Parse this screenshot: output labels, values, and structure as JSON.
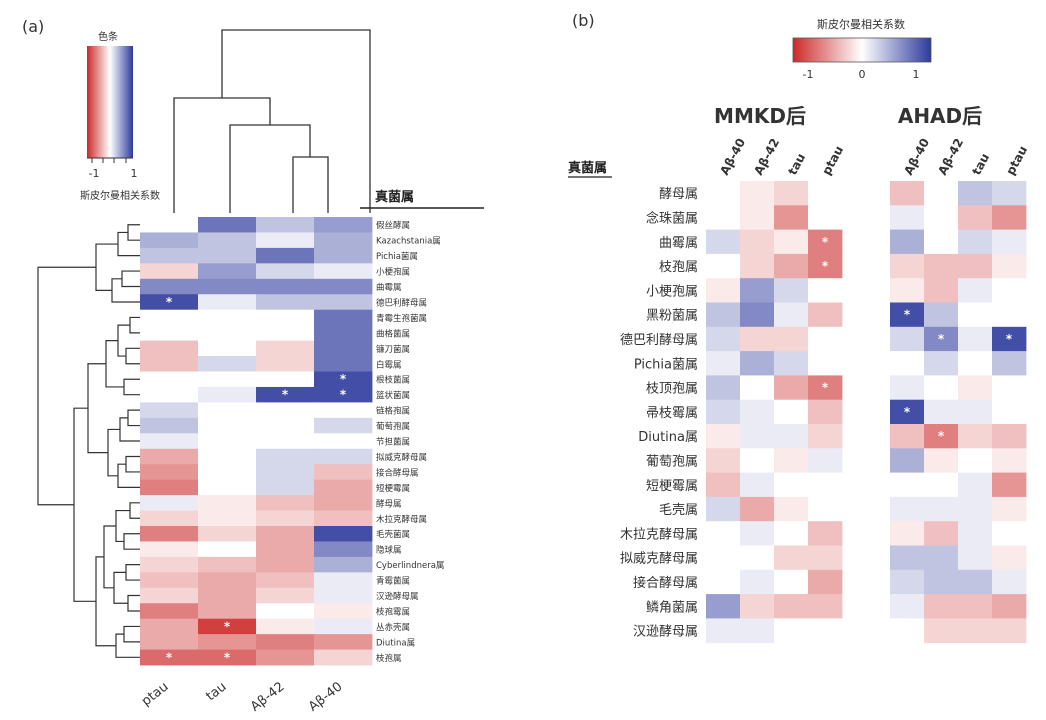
{
  "panel_a": {
    "panel_label": "(a)",
    "legend_title": "色条",
    "legend_min": "-1",
    "legend_max": "1",
    "legend_caption": "斯皮尔曼相关系数",
    "rows_header": "真菌属",
    "columns": [
      "ptau",
      "tau",
      "Aβ-42",
      "Aβ-40"
    ],
    "rows": [
      "假丝酵属",
      "Kazachstania属",
      "Pichia菌属",
      "小梗孢属",
      "曲霉属",
      "德巴利酵母属",
      "青霉生孢菌属",
      "曲格菌属",
      "镰刀菌属",
      "白霉属",
      "根枝菌属",
      "篮状菌属",
      "链格孢属",
      "葡萄孢属",
      "节担菌属",
      "拟威克酵母属",
      "接合酵母属",
      "短梗霉属",
      "酵母属",
      "木拉克酵母属",
      "毛壳菌属",
      "隐球属",
      "Cyberlindnera属",
      "青霉菌属",
      "汉逊酵母属",
      "枝孢霉属",
      "丛赤壳属",
      "Diutina属",
      "枝孢属"
    ]
  },
  "panel_b": {
    "panel_label": "(b)",
    "legend_title": "斯皮尔曼相关系数",
    "legend_ticks": [
      "-1",
      "0",
      "1"
    ],
    "group1_title": "MMKD后",
    "group2_title": "AHAD后",
    "rows_header": "真菌属",
    "columns": [
      "Aβ-40",
      "Aβ-42",
      "tau",
      "ptau"
    ],
    "rows": [
      "酵母属",
      "念珠菌属",
      "曲霉属",
      "枝孢属",
      "小梗孢属",
      "黑粉菌属",
      "德巴利酵母属",
      "Pichia菌属",
      "枝顶孢属",
      "帚枝霉属",
      "Diutina属",
      "葡萄孢属",
      "短梗霉属",
      "毛壳属",
      "木拉克酵母属",
      "拟威克酵母属",
      "接合酵母属",
      "鳞角菌属",
      "汉逊酵母属"
    ]
  },
  "colors": {
    "negative": "#cc2a2a",
    "neutral": "#ffffff",
    "positive": "#2e3a9c"
  },
  "significance_mark": "*",
  "chart_data": [
    {
      "type": "heatmap",
      "title": "",
      "legend_title": "色条",
      "legend_caption": "斯皮尔曼相关系数",
      "vmin": -1,
      "vmax": 1,
      "x": [
        "ptau",
        "tau",
        "Aβ-42",
        "Aβ-40"
      ],
      "y": [
        "假丝酵属",
        "Kazachstania属",
        "Pichia菌属",
        "小梗孢属",
        "曲霉属",
        "德巴利酵母属",
        "青霉生孢菌属",
        "曲格菌属",
        "镰刀菌属",
        "白霉属",
        "根枝菌属",
        "篮状菌属",
        "链格孢属",
        "葡萄孢属",
        "节担菌属",
        "拟威克酵母属",
        "接合酵母属",
        "短梗霉属",
        "酵母属",
        "木拉克酵母属",
        "毛壳菌属",
        "隐球属",
        "Cyberlindnera属",
        "青霉菌属",
        "汉逊酵母属",
        "枝孢霉属",
        "丛赤壳属",
        "Diutina属",
        "枝孢属"
      ],
      "values": [
        [
          0.0,
          0.7,
          0.3,
          0.5
        ],
        [
          0.4,
          0.3,
          0.1,
          0.4
        ],
        [
          0.3,
          0.3,
          0.7,
          0.4
        ],
        [
          -0.2,
          0.5,
          0.2,
          0.1
        ],
        [
          0.6,
          0.6,
          0.6,
          0.6
        ],
        [
          0.9,
          0.1,
          0.3,
          0.3
        ],
        [
          0.0,
          0.0,
          0.0,
          0.7
        ],
        [
          0.0,
          0.0,
          0.0,
          0.7
        ],
        [
          -0.3,
          0.0,
          -0.2,
          0.7
        ],
        [
          -0.3,
          0.2,
          -0.2,
          0.7
        ],
        [
          0.0,
          0.0,
          0.0,
          0.9
        ],
        [
          0.0,
          0.1,
          0.9,
          0.9
        ],
        [
          0.2,
          0.0,
          0.0,
          0.0
        ],
        [
          0.3,
          0.0,
          0.0,
          0.2
        ],
        [
          0.1,
          0.0,
          0.0,
          0.0
        ],
        [
          -0.4,
          0.0,
          0.2,
          0.2
        ],
        [
          -0.5,
          0.0,
          0.2,
          -0.3
        ],
        [
          -0.6,
          0.0,
          0.2,
          -0.4
        ],
        [
          0.1,
          -0.1,
          -0.3,
          -0.4
        ],
        [
          -0.2,
          -0.1,
          -0.2,
          -0.3
        ],
        [
          -0.6,
          -0.2,
          -0.4,
          0.9
        ],
        [
          -0.1,
          0.0,
          -0.4,
          0.6
        ],
        [
          -0.2,
          -0.3,
          -0.4,
          0.4
        ],
        [
          -0.3,
          -0.4,
          -0.3,
          0.1
        ],
        [
          -0.2,
          -0.4,
          -0.2,
          0.1
        ],
        [
          -0.6,
          -0.4,
          0.0,
          -0.1
        ],
        [
          -0.4,
          -0.9,
          -0.1,
          0.1
        ],
        [
          -0.4,
          -0.5,
          -0.6,
          -0.5
        ],
        [
          -0.7,
          -0.7,
          -0.5,
          -0.2
        ]
      ],
      "significant": [
        [
          5,
          0
        ],
        [
          10,
          3
        ],
        [
          11,
          2
        ],
        [
          11,
          3
        ],
        [
          26,
          1
        ],
        [
          28,
          0
        ],
        [
          28,
          1
        ]
      ]
    },
    {
      "type": "heatmap",
      "title": "MMKD后",
      "legend_title": "斯皮尔曼相关系数",
      "vmin": -1,
      "vmax": 1,
      "x": [
        "Aβ-40",
        "Aβ-42",
        "tau",
        "ptau"
      ],
      "y": [
        "酵母属",
        "念珠菌属",
        "曲霉属",
        "枝孢属",
        "小梗孢属",
        "黑粉菌属",
        "德巴利酵母属",
        "Pichia菌属",
        "枝顶孢属",
        "帚枝霉属",
        "Diutina属",
        "葡萄孢属",
        "短梗霉属",
        "毛壳属",
        "木拉克酵母属",
        "拟威克酵母属",
        "接合酵母属",
        "鳞角菌属",
        "汉逊酵母属"
      ],
      "values": [
        [
          0.0,
          -0.1,
          -0.2,
          0.0
        ],
        [
          0.0,
          -0.1,
          -0.5,
          0.0
        ],
        [
          0.2,
          -0.2,
          -0.1,
          -0.6
        ],
        [
          0.0,
          -0.2,
          -0.4,
          -0.6
        ],
        [
          -0.1,
          0.5,
          0.2,
          0.0
        ],
        [
          0.3,
          0.6,
          0.1,
          -0.3
        ],
        [
          0.2,
          -0.2,
          -0.2,
          0.0
        ],
        [
          0.1,
          0.4,
          0.2,
          0.0
        ],
        [
          0.3,
          0.0,
          -0.4,
          -0.6
        ],
        [
          0.2,
          0.1,
          0.0,
          -0.3
        ],
        [
          -0.1,
          0.1,
          0.1,
          -0.2
        ],
        [
          -0.2,
          0.0,
          -0.1,
          0.1
        ],
        [
          -0.3,
          0.1,
          0.0,
          0.0
        ],
        [
          0.2,
          -0.4,
          -0.1,
          0.0
        ],
        [
          0.0,
          0.1,
          0.0,
          -0.3
        ],
        [
          0.0,
          0.0,
          -0.2,
          -0.2
        ],
        [
          0.0,
          0.1,
          0.0,
          -0.4
        ],
        [
          0.5,
          -0.2,
          -0.3,
          -0.3
        ],
        [
          0.1,
          0.1,
          0.0,
          0.0
        ]
      ],
      "significant": [
        [
          2,
          3
        ],
        [
          3,
          3
        ],
        [
          8,
          3
        ]
      ]
    },
    {
      "type": "heatmap",
      "title": "AHAD后",
      "legend_title": "斯皮尔曼相关系数",
      "vmin": -1,
      "vmax": 1,
      "x": [
        "Aβ-40",
        "Aβ-42",
        "tau",
        "ptau"
      ],
      "y": [
        "酵母属",
        "念珠菌属",
        "曲霉属",
        "枝孢属",
        "小梗孢属",
        "黑粉菌属",
        "德巴利酵母属",
        "Pichia菌属",
        "枝顶孢属",
        "帚枝霉属",
        "Diutina属",
        "葡萄孢属",
        "短梗霉属",
        "毛壳属",
        "木拉克酵母属",
        "拟威克酵母属",
        "接合酵母属",
        "鳞角菌属",
        "汉逊酵母属"
      ],
      "values": [
        [
          -0.3,
          0.0,
          0.3,
          0.2
        ],
        [
          0.1,
          0.0,
          -0.3,
          -0.5
        ],
        [
          0.4,
          0.0,
          0.2,
          0.1
        ],
        [
          -0.2,
          -0.3,
          -0.3,
          -0.1
        ],
        [
          -0.1,
          -0.3,
          0.1,
          0.0
        ],
        [
          0.9,
          0.3,
          0.0,
          0.0
        ],
        [
          0.2,
          0.6,
          0.1,
          0.9
        ],
        [
          0.0,
          0.2,
          0.0,
          0.3
        ],
        [
          0.1,
          0.0,
          -0.1,
          0.0
        ],
        [
          0.9,
          0.1,
          0.1,
          0.0
        ],
        [
          -0.3,
          -0.6,
          -0.2,
          -0.3
        ],
        [
          0.4,
          -0.1,
          0.0,
          -0.1
        ],
        [
          0.0,
          0.0,
          0.1,
          -0.5
        ],
        [
          0.1,
          0.1,
          0.1,
          -0.1
        ],
        [
          -0.1,
          -0.3,
          0.1,
          0.0
        ],
        [
          0.3,
          0.3,
          0.1,
          -0.1
        ],
        [
          0.2,
          0.3,
          0.3,
          0.1
        ],
        [
          0.1,
          -0.3,
          -0.3,
          -0.4
        ],
        [
          0.0,
          -0.2,
          -0.2,
          -0.2
        ]
      ],
      "significant": [
        [
          5,
          0
        ],
        [
          6,
          1
        ],
        [
          6,
          3
        ],
        [
          9,
          0
        ],
        [
          10,
          1
        ]
      ]
    }
  ]
}
